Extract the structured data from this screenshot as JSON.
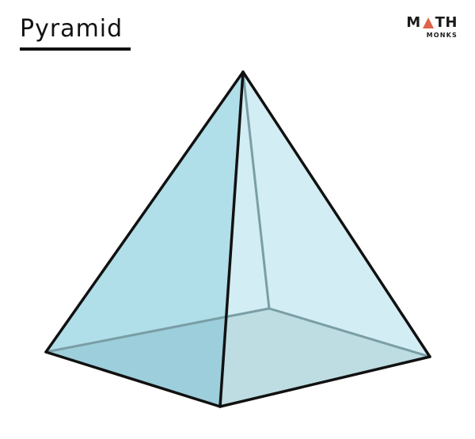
{
  "title": "Pyramid",
  "brand": {
    "main_left": "M",
    "main_right": "TH",
    "sub": "MONKS",
    "accent_color": "#e0644c"
  },
  "colors": {
    "face_left": "#a9dbe7",
    "face_right": "#cdebf2",
    "base": "#a9cfd5",
    "edge": "#111111",
    "hidden_edge": "#7a9ea6"
  }
}
